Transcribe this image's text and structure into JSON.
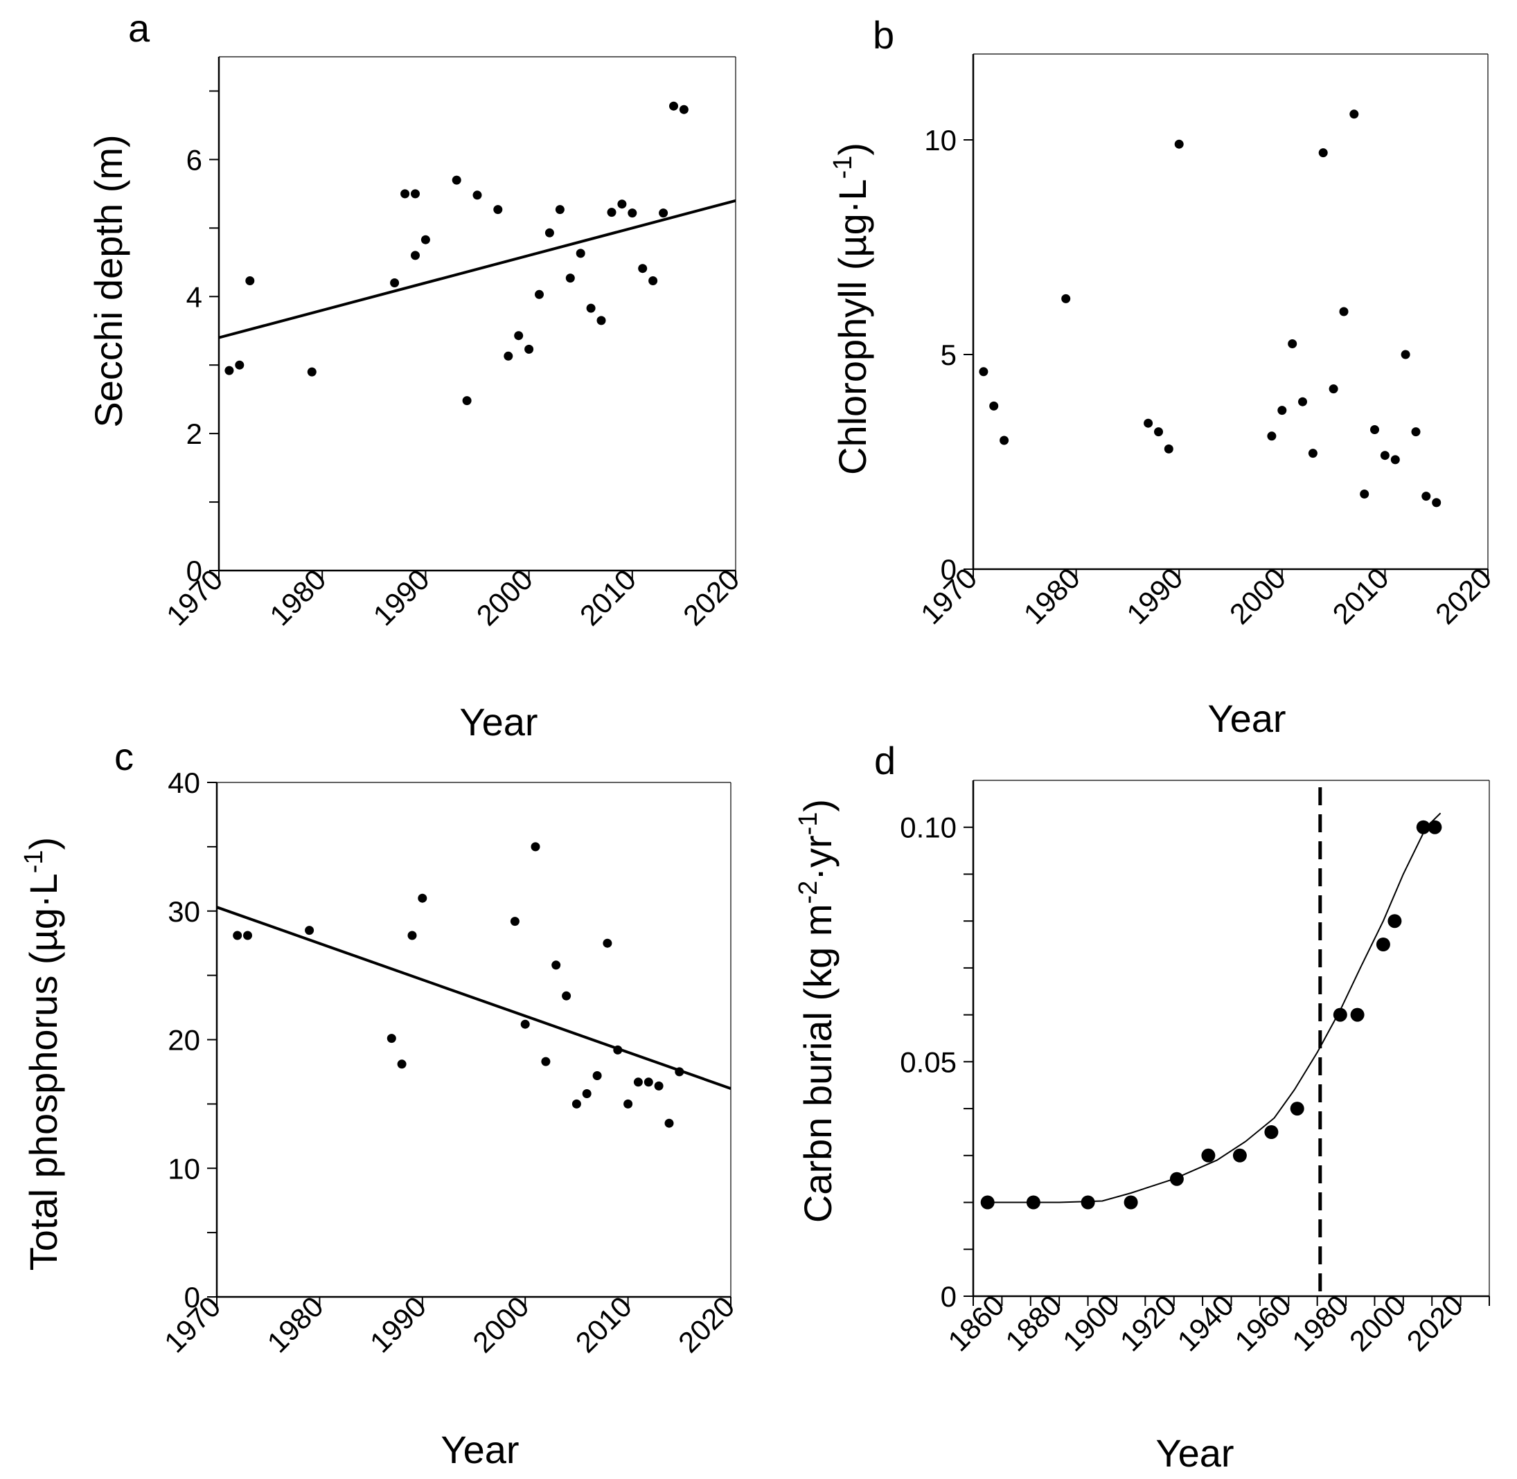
{
  "chart_data": [
    {
      "panel": "a",
      "type": "scatter",
      "xlabel": "Year",
      "ylabel": "Secchi depth (m)",
      "xlim": [
        1970,
        2020
      ],
      "ylim": [
        0,
        7.5
      ],
      "x_ticks": [
        "1970",
        "1980",
        "1990",
        "2000",
        "2010",
        "2020"
      ],
      "y_ticks": [
        "0",
        "2",
        "4",
        "6"
      ],
      "y_minor_ticks": [
        1,
        3,
        5,
        7
      ],
      "points": [
        [
          1971,
          2.92
        ],
        [
          1972,
          3.0
        ],
        [
          1973,
          4.23
        ],
        [
          1979,
          2.9
        ],
        [
          1987,
          4.2
        ],
        [
          1988,
          5.5
        ],
        [
          1989,
          5.5
        ],
        [
          1989,
          4.6
        ],
        [
          1990,
          4.83
        ],
        [
          1993,
          5.7
        ],
        [
          1994,
          2.48
        ],
        [
          1995,
          5.48
        ],
        [
          1997,
          5.27
        ],
        [
          1998,
          3.13
        ],
        [
          1999,
          3.43
        ],
        [
          2000,
          3.23
        ],
        [
          2001,
          4.03
        ],
        [
          2002,
          4.93
        ],
        [
          2003,
          5.27
        ],
        [
          2004,
          4.27
        ],
        [
          2005,
          4.63
        ],
        [
          2006,
          3.83
        ],
        [
          2007,
          3.65
        ],
        [
          2008,
          5.23
        ],
        [
          2009,
          5.35
        ],
        [
          2010,
          5.22
        ],
        [
          2011,
          4.41
        ],
        [
          2012,
          4.23
        ],
        [
          2013,
          5.22
        ],
        [
          2014,
          6.78
        ],
        [
          2015,
          6.73
        ]
      ],
      "fit_line": [
        [
          1970,
          3.4
        ],
        [
          2020,
          5.4
        ]
      ]
    },
    {
      "panel": "b",
      "type": "scatter",
      "xlabel": "Year",
      "ylabel": "Chlorophyll (µg·L",
      "ylabel_sup": "-1",
      "ylabel_close": ")",
      "xlim": [
        1970,
        2020
      ],
      "ylim": [
        0,
        12
      ],
      "x_ticks": [
        "1970",
        "1980",
        "1990",
        "2000",
        "2010",
        "2020"
      ],
      "y_ticks": [
        "0",
        "5",
        "10"
      ],
      "points": [
        [
          1971,
          4.6
        ],
        [
          1972,
          3.8
        ],
        [
          1973,
          3.0
        ],
        [
          1979,
          6.3
        ],
        [
          1987,
          3.4
        ],
        [
          1988,
          3.2
        ],
        [
          1989,
          2.8
        ],
        [
          1990,
          9.9
        ],
        [
          1999,
          3.1
        ],
        [
          2000,
          3.7
        ],
        [
          2001,
          5.25
        ],
        [
          2002,
          3.9
        ],
        [
          2003,
          2.7
        ],
        [
          2004,
          9.7
        ],
        [
          2005,
          4.2
        ],
        [
          2006,
          6.0
        ],
        [
          2007,
          10.6
        ],
        [
          2008,
          1.75
        ],
        [
          2009,
          3.25
        ],
        [
          2010,
          2.65
        ],
        [
          2011,
          2.55
        ],
        [
          2012,
          5.0
        ],
        [
          2013,
          3.2
        ],
        [
          2014,
          1.7
        ],
        [
          2015,
          1.55
        ]
      ]
    },
    {
      "panel": "c",
      "type": "scatter",
      "xlabel": "Year",
      "ylabel": "Total phosphorus (µg·L",
      "ylabel_sup": "-1",
      "ylabel_close": ")",
      "xlim": [
        1970,
        2020
      ],
      "ylim": [
        0,
        40
      ],
      "x_ticks": [
        "1970",
        "1980",
        "1990",
        "2000",
        "2010",
        "2020"
      ],
      "y_ticks": [
        "0",
        "10",
        "20",
        "30",
        "40"
      ],
      "y_minor_ticks": [
        5,
        15,
        25,
        35
      ],
      "points": [
        [
          1972,
          28.1
        ],
        [
          1973,
          28.1
        ],
        [
          1979,
          28.5
        ],
        [
          1987,
          20.1
        ],
        [
          1988,
          18.1
        ],
        [
          1989,
          28.1
        ],
        [
          1990,
          31.0
        ],
        [
          1999,
          29.2
        ],
        [
          2000,
          21.2
        ],
        [
          2001,
          35.0
        ],
        [
          2002,
          18.3
        ],
        [
          2003,
          25.8
        ],
        [
          2004,
          23.4
        ],
        [
          2005,
          15.0
        ],
        [
          2006,
          15.8
        ],
        [
          2007,
          17.2
        ],
        [
          2008,
          27.5
        ],
        [
          2009,
          19.2
        ],
        [
          2010,
          15.0
        ],
        [
          2011,
          16.7
        ],
        [
          2012,
          16.7
        ],
        [
          2013,
          16.4
        ],
        [
          2014,
          13.5
        ],
        [
          2015,
          17.5
        ]
      ],
      "fit_line": [
        [
          1970,
          30.3
        ],
        [
          2020,
          16.2
        ]
      ]
    },
    {
      "panel": "d",
      "type": "scatter",
      "xlabel": "Year",
      "ylabel": "Carbn burial (kg m",
      "ylabel_sup1": "-2",
      "ylabel_mid": "·yr",
      "ylabel_sup2": "-1",
      "ylabel_close": ")",
      "xlim": [
        1850,
        2030
      ],
      "ylim": [
        0,
        0.11
      ],
      "x_ticks": [
        "1860",
        "1880",
        "1900",
        "1920",
        "1940",
        "1960",
        "1980",
        "2000",
        "2020"
      ],
      "x_minor_ticks": [
        1850,
        1870,
        1890,
        1910,
        1930,
        1950,
        1970,
        1990,
        2010,
        2030
      ],
      "y_ticks": [
        "0",
        "0.05",
        "0.10"
      ],
      "y_minor_ticks": [
        0.01,
        0.02,
        0.03,
        0.04,
        0.06,
        0.07,
        0.08,
        0.09
      ],
      "points": [
        [
          1855,
          0.02
        ],
        [
          1871,
          0.02
        ],
        [
          1890,
          0.02
        ],
        [
          1905,
          0.02
        ],
        [
          1921,
          0.025
        ],
        [
          1932,
          0.03
        ],
        [
          1943,
          0.03
        ],
        [
          1954,
          0.035
        ],
        [
          1963,
          0.04
        ],
        [
          1978,
          0.06
        ],
        [
          1984,
          0.06
        ],
        [
          1993,
          0.075
        ],
        [
          1997,
          0.08
        ],
        [
          2007,
          0.1
        ],
        [
          2011,
          0.1
        ]
      ],
      "fit_curve": [
        [
          1855,
          0.02
        ],
        [
          1880,
          0.02
        ],
        [
          1895,
          0.0203
        ],
        [
          1905,
          0.022
        ],
        [
          1920,
          0.025
        ],
        [
          1935,
          0.029
        ],
        [
          1945,
          0.033
        ],
        [
          1955,
          0.038
        ],
        [
          1962,
          0.044
        ],
        [
          1970,
          0.052
        ],
        [
          1978,
          0.061
        ],
        [
          1985,
          0.07
        ],
        [
          1993,
          0.08
        ],
        [
          2000,
          0.09
        ],
        [
          2008,
          0.1
        ],
        [
          2013,
          0.103
        ]
      ],
      "reference_line_x": 1971
    }
  ]
}
